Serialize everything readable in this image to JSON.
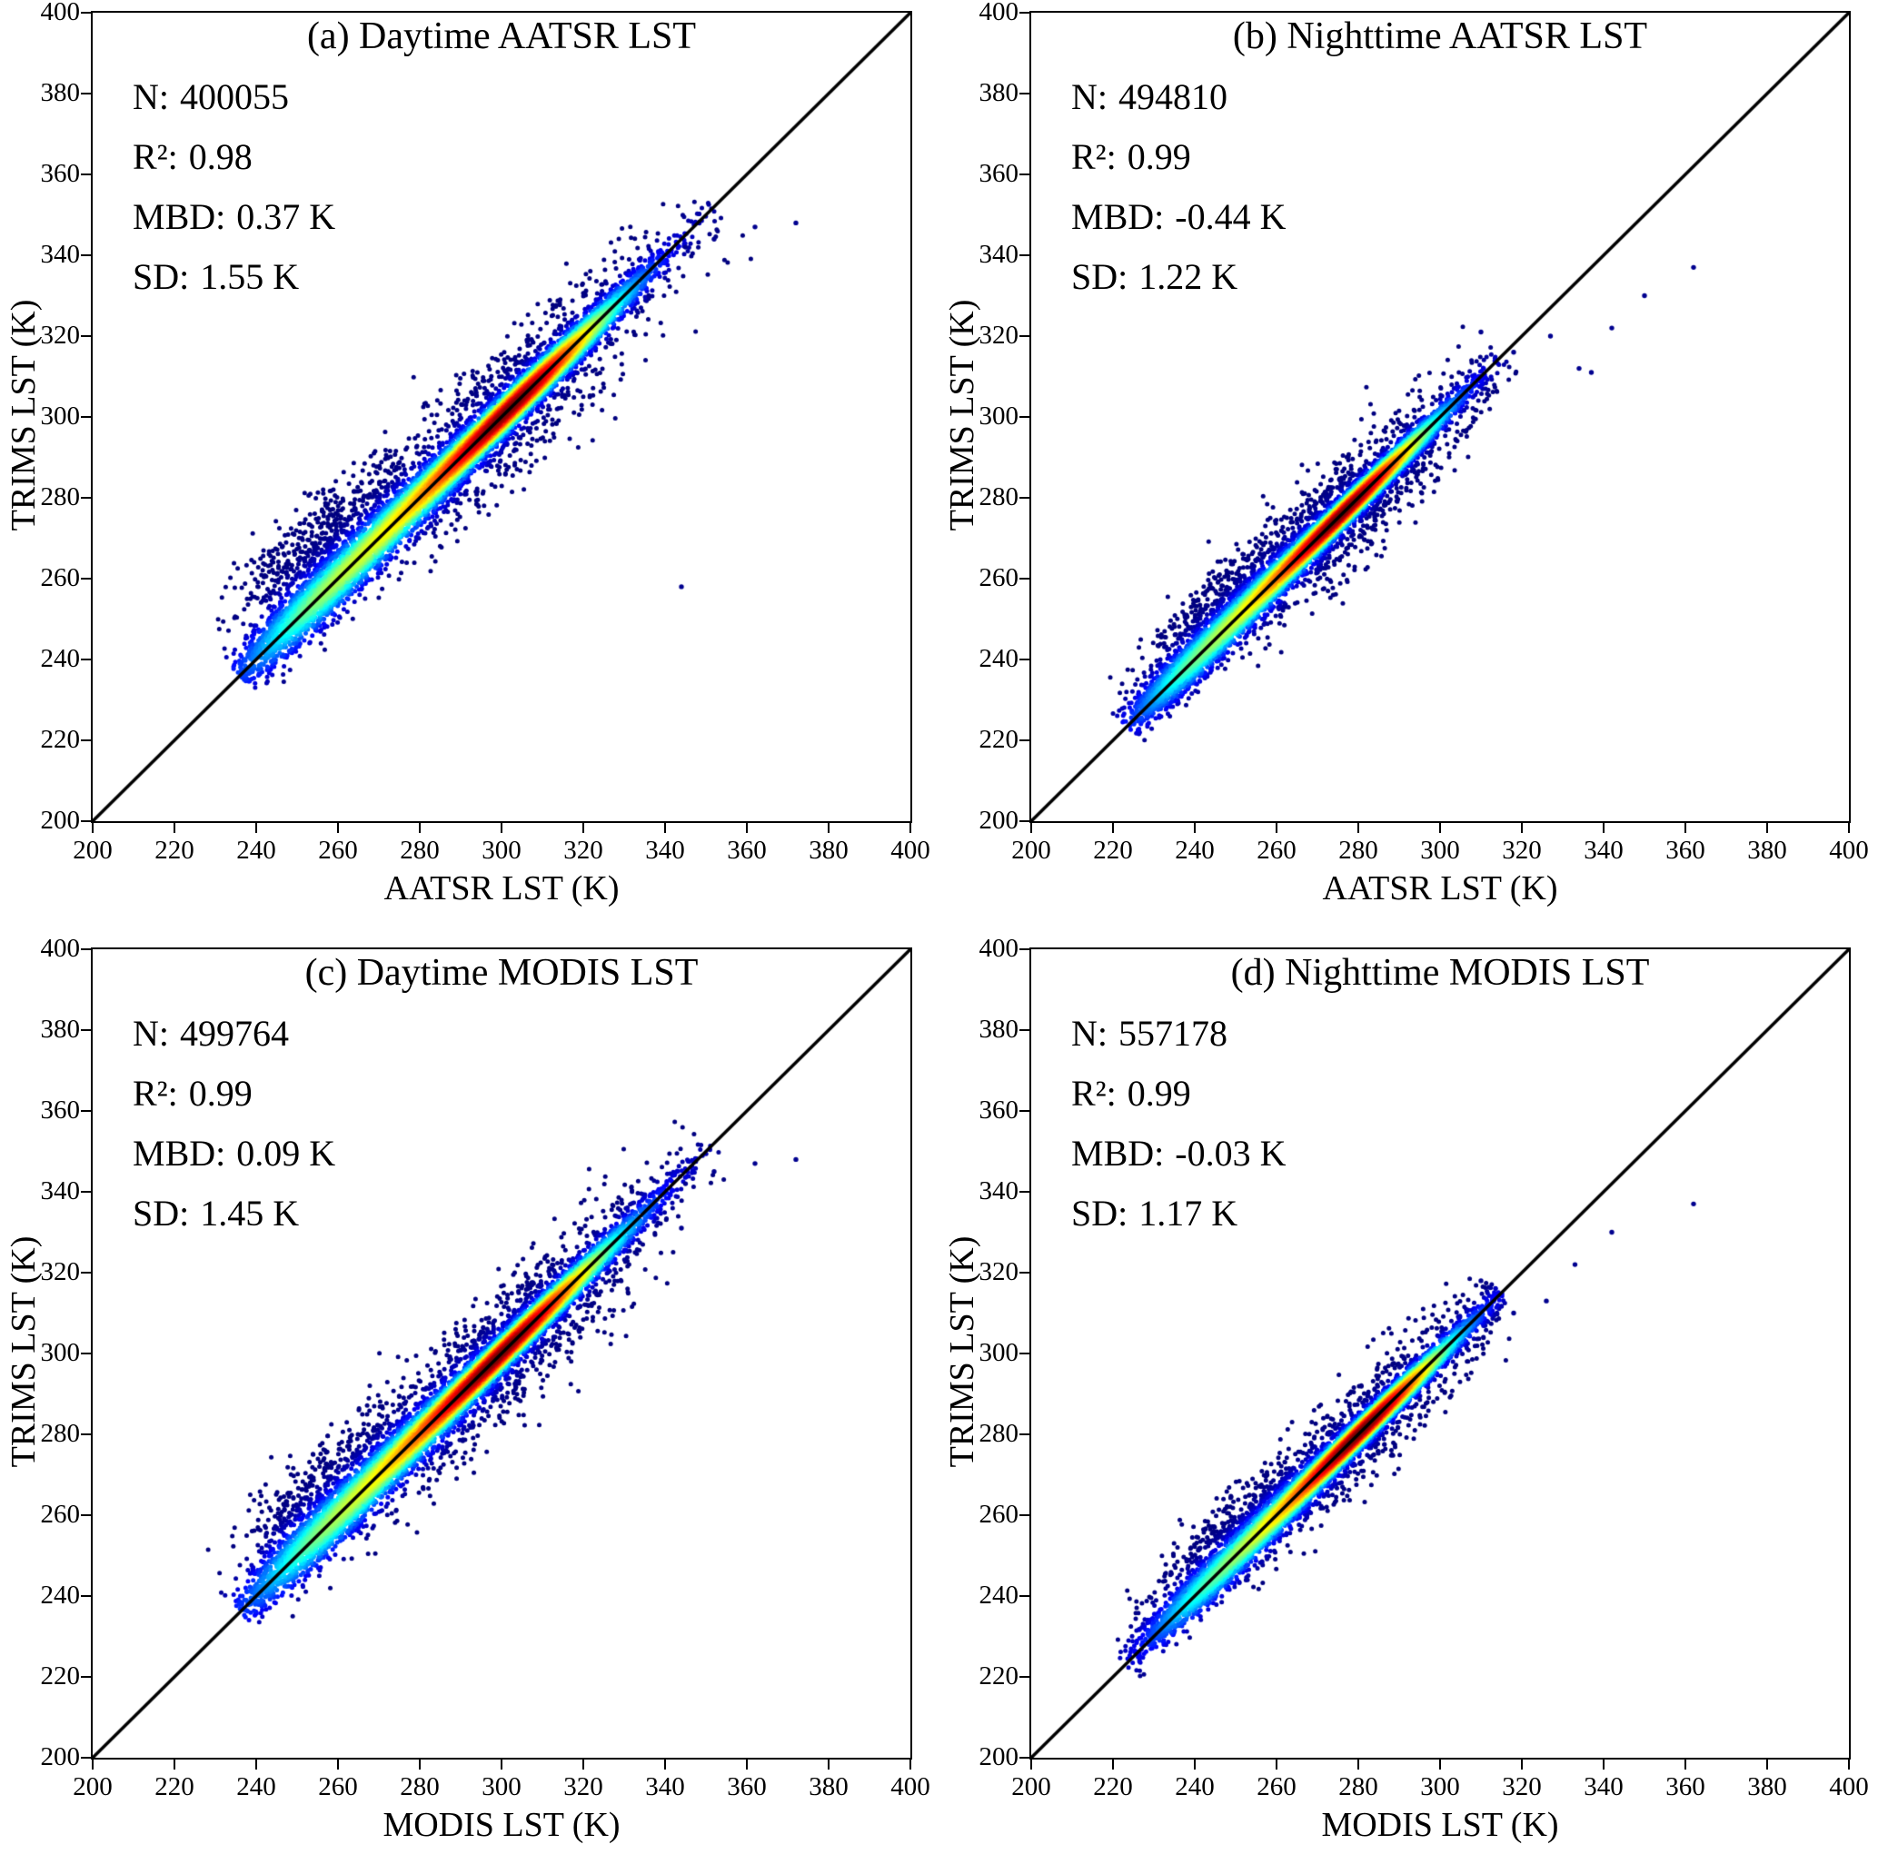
{
  "figure": {
    "background": "#ffffff",
    "identity_line_color": "#000000",
    "low_density_color": "#00008f",
    "high_density_color": "#7f0000"
  },
  "chart_data": [
    {
      "id": "a",
      "type": "scatter",
      "subtype": "density-scatter",
      "title": "(a) Daytime AATSR LST",
      "xlabel": "AATSR LST (K)",
      "ylabel": "TRIMS LST (K)",
      "xlim": [
        200,
        400
      ],
      "ylim": [
        200,
        400
      ],
      "ticks": [
        200,
        220,
        240,
        260,
        280,
        300,
        320,
        340,
        360,
        380,
        400
      ],
      "identity_line": true,
      "colormap": "jet",
      "stats": {
        "N": 400055,
        "R2": 0.98,
        "MBD_K": 0.37,
        "SD_K": 1.55
      },
      "stats_display": [
        {
          "label": "N:",
          "value": "400055"
        },
        {
          "label": "R²:",
          "value": "0.98"
        },
        {
          "label": "MBD:",
          "value": "0.37 K"
        },
        {
          "label": "SD:",
          "value": "1.55 K"
        }
      ],
      "cloud": {
        "seed": 101,
        "range": [
          236,
          352
        ],
        "components": [
          {
            "u_mean": 303,
            "u_sd": 14,
            "v_sd": 1.1,
            "n": 7000,
            "core": true
          },
          {
            "u_mean": 272,
            "u_sd": 16,
            "v_sd": 1.6,
            "n": 2500,
            "core": true
          },
          {
            "u_mean": 253,
            "u_sd": 9,
            "v_sd": 2.0,
            "n": 800,
            "core": true
          },
          {
            "u_mean": 300,
            "u_sd": 20,
            "v_sd": 4.5,
            "n": 1500,
            "core": false
          },
          {
            "u_mean": 262,
            "u_sd": 10,
            "v_sd": 3.5,
            "v_mean": 6,
            "n": 600,
            "core": false
          }
        ],
        "uniform_tail": {
          "n": 250,
          "v_sd": 2.0
        }
      },
      "outliers": [
        [
          372,
          348
        ],
        [
          362,
          347
        ],
        [
          352,
          344
        ],
        [
          345,
          342
        ],
        [
          344,
          258
        ],
        [
          336,
          330
        ]
      ]
    },
    {
      "id": "b",
      "type": "scatter",
      "subtype": "density-scatter",
      "title": "(b) Nighttime AATSR LST",
      "xlabel": "AATSR LST (K)",
      "ylabel": "TRIMS LST (K)",
      "xlim": [
        200,
        400
      ],
      "ylim": [
        200,
        400
      ],
      "ticks": [
        200,
        220,
        240,
        260,
        280,
        300,
        320,
        340,
        360,
        380,
        400
      ],
      "identity_line": true,
      "colormap": "jet",
      "stats": {
        "N": 494810,
        "R2": 0.99,
        "MBD_K": -0.44,
        "SD_K": 1.22
      },
      "stats_display": [
        {
          "label": "N:",
          "value": "494810"
        },
        {
          "label": "R²:",
          "value": "0.99"
        },
        {
          "label": "MBD:",
          "value": "-0.44 K"
        },
        {
          "label": "SD:",
          "value": "1.22 K"
        }
      ],
      "cloud": {
        "seed": 202,
        "range": [
          223,
          315
        ],
        "components": [
          {
            "u_mean": 277,
            "u_sd": 12,
            "v_sd": 0.85,
            "n": 7000,
            "core": true
          },
          {
            "u_mean": 252,
            "u_sd": 12,
            "v_sd": 1.3,
            "n": 2200,
            "core": true
          },
          {
            "u_mean": 237,
            "u_sd": 7,
            "v_sd": 1.5,
            "n": 600,
            "core": true
          },
          {
            "u_mean": 275,
            "u_sd": 18,
            "v_sd": 3.5,
            "n": 1300,
            "core": false
          },
          {
            "u_mean": 250,
            "u_sd": 9,
            "v_sd": 2.5,
            "v_mean": 4,
            "n": 400,
            "core": false
          }
        ],
        "uniform_tail": {
          "n": 200,
          "v_sd": 1.8
        }
      },
      "outliers": [
        [
          362,
          337
        ],
        [
          350,
          330
        ],
        [
          342,
          322
        ],
        [
          334,
          312
        ],
        [
          327,
          320
        ],
        [
          318,
          316
        ],
        [
          310,
          321
        ],
        [
          337,
          311
        ]
      ]
    },
    {
      "id": "c",
      "type": "scatter",
      "subtype": "density-scatter",
      "title": "(c) Daytime MODIS LST",
      "xlabel": "MODIS LST (K)",
      "ylabel": "TRIMS LST (K)",
      "xlim": [
        200,
        400
      ],
      "ylim": [
        200,
        400
      ],
      "ticks": [
        200,
        220,
        240,
        260,
        280,
        300,
        320,
        340,
        360,
        380,
        400
      ],
      "identity_line": true,
      "colormap": "jet",
      "stats": {
        "N": 499764,
        "R2": 0.99,
        "MBD_K": 0.09,
        "SD_K": 1.45
      },
      "stats_display": [
        {
          "label": "N:",
          "value": "499764"
        },
        {
          "label": "R²:",
          "value": "0.99"
        },
        {
          "label": "MBD:",
          "value": "0.09 K"
        },
        {
          "label": "SD:",
          "value": "1.45 K"
        }
      ],
      "cloud": {
        "seed": 303,
        "range": [
          236,
          352
        ],
        "components": [
          {
            "u_mean": 301,
            "u_sd": 15,
            "v_sd": 1.0,
            "n": 7000,
            "core": true
          },
          {
            "u_mean": 272,
            "u_sd": 16,
            "v_sd": 1.6,
            "n": 2400,
            "core": true
          },
          {
            "u_mean": 254,
            "u_sd": 9,
            "v_sd": 2.0,
            "n": 700,
            "core": true
          },
          {
            "u_mean": 298,
            "u_sd": 20,
            "v_sd": 4.2,
            "n": 1600,
            "core": false
          },
          {
            "u_mean": 262,
            "u_sd": 10,
            "v_sd": 3.2,
            "v_mean": 5,
            "n": 450,
            "core": false
          }
        ],
        "uniform_tail": {
          "n": 250,
          "v_sd": 2.0
        }
      },
      "outliers": [
        [
          372,
          348
        ],
        [
          362,
          347
        ],
        [
          352,
          345
        ],
        [
          344,
          331
        ],
        [
          345,
          342
        ]
      ]
    },
    {
      "id": "d",
      "type": "scatter",
      "subtype": "density-scatter",
      "title": "(d) Nighttime MODIS LST",
      "xlabel": "MODIS LST (K)",
      "ylabel": "TRIMS LST (K)",
      "xlim": [
        200,
        400
      ],
      "ylim": [
        200,
        400
      ],
      "ticks": [
        200,
        220,
        240,
        260,
        280,
        300,
        320,
        340,
        360,
        380,
        400
      ],
      "identity_line": true,
      "colormap": "jet",
      "stats": {
        "N": 557178,
        "R2": 0.99,
        "MBD_K": -0.03,
        "SD_K": 1.17
      },
      "stats_display": [
        {
          "label": "N:",
          "value": "557178"
        },
        {
          "label": "R²:",
          "value": "0.99"
        },
        {
          "label": "MBD:",
          "value": "-0.03 K"
        },
        {
          "label": "SD:",
          "value": "1.17 K"
        }
      ],
      "cloud": {
        "seed": 404,
        "range": [
          223,
          315
        ],
        "components": [
          {
            "u_mean": 281,
            "u_sd": 12,
            "v_sd": 0.85,
            "n": 7000,
            "core": true
          },
          {
            "u_mean": 256,
            "u_sd": 12,
            "v_sd": 1.3,
            "n": 2100,
            "core": true
          },
          {
            "u_mean": 240,
            "u_sd": 7,
            "v_sd": 1.5,
            "n": 500,
            "core": true
          },
          {
            "u_mean": 279,
            "u_sd": 18,
            "v_sd": 3.2,
            "n": 1200,
            "core": false
          },
          {
            "u_mean": 252,
            "u_sd": 9,
            "v_sd": 2.3,
            "v_mean": 4,
            "n": 350,
            "core": false
          }
        ],
        "uniform_tail": {
          "n": 200,
          "v_sd": 1.8
        }
      },
      "outliers": [
        [
          362,
          337
        ],
        [
          342,
          330
        ],
        [
          333,
          322
        ],
        [
          326,
          313
        ],
        [
          318,
          310
        ],
        [
          310,
          318
        ]
      ]
    }
  ]
}
